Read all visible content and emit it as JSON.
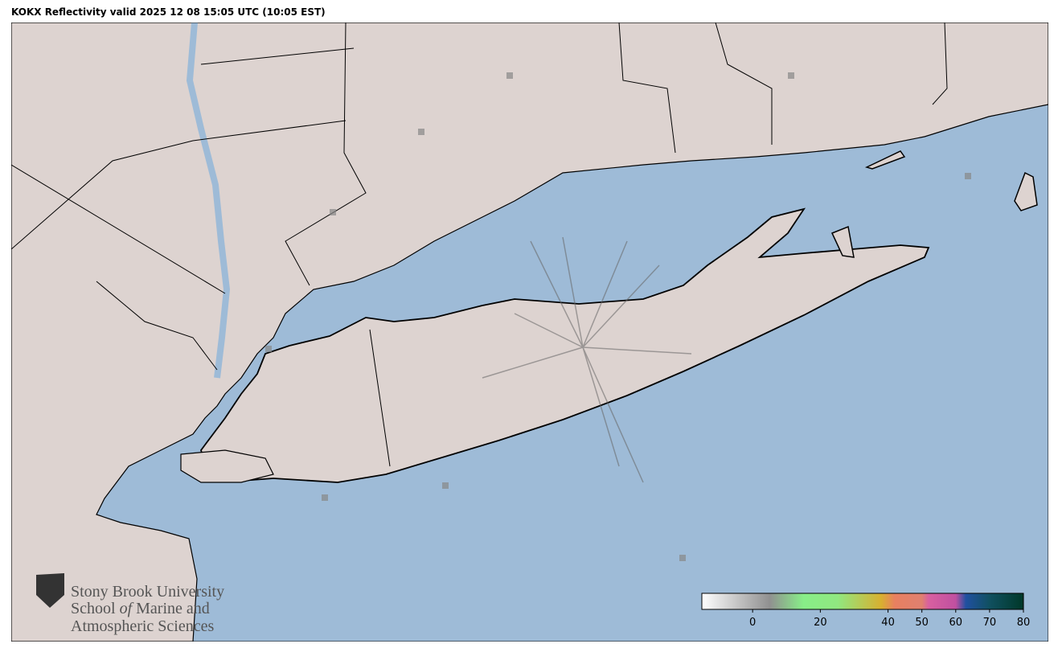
{
  "header": {
    "title": "KOKX Reflectivity valid 2025 12 08 15:05 UTC (10:05 EST)"
  },
  "logo": {
    "line1": "Stony Brook University",
    "line2_parts": [
      "School ",
      "of",
      " Marine and"
    ],
    "line3": "Atmospheric Sciences"
  },
  "colorbar": {
    "lim": [
      -15,
      80
    ],
    "ticks": [
      0,
      20,
      40,
      50,
      60,
      70,
      80
    ],
    "stops": [
      {
        "value": -15,
        "color": "#ffffff"
      },
      {
        "value": 5,
        "color": "#909090"
      },
      {
        "value": 15,
        "color": "#88ee88"
      },
      {
        "value": 25,
        "color": "#90e880"
      },
      {
        "value": 38,
        "color": "#d8b030"
      },
      {
        "value": 42,
        "color": "#e88060"
      },
      {
        "value": 50,
        "color": "#e08070"
      },
      {
        "value": 52,
        "color": "#d860a0"
      },
      {
        "value": 60,
        "color": "#c050a0"
      },
      {
        "value": 63,
        "color": "#2050a0"
      },
      {
        "value": 70,
        "color": "#105060"
      },
      {
        "value": 80,
        "color": "#003828"
      }
    ]
  }
}
